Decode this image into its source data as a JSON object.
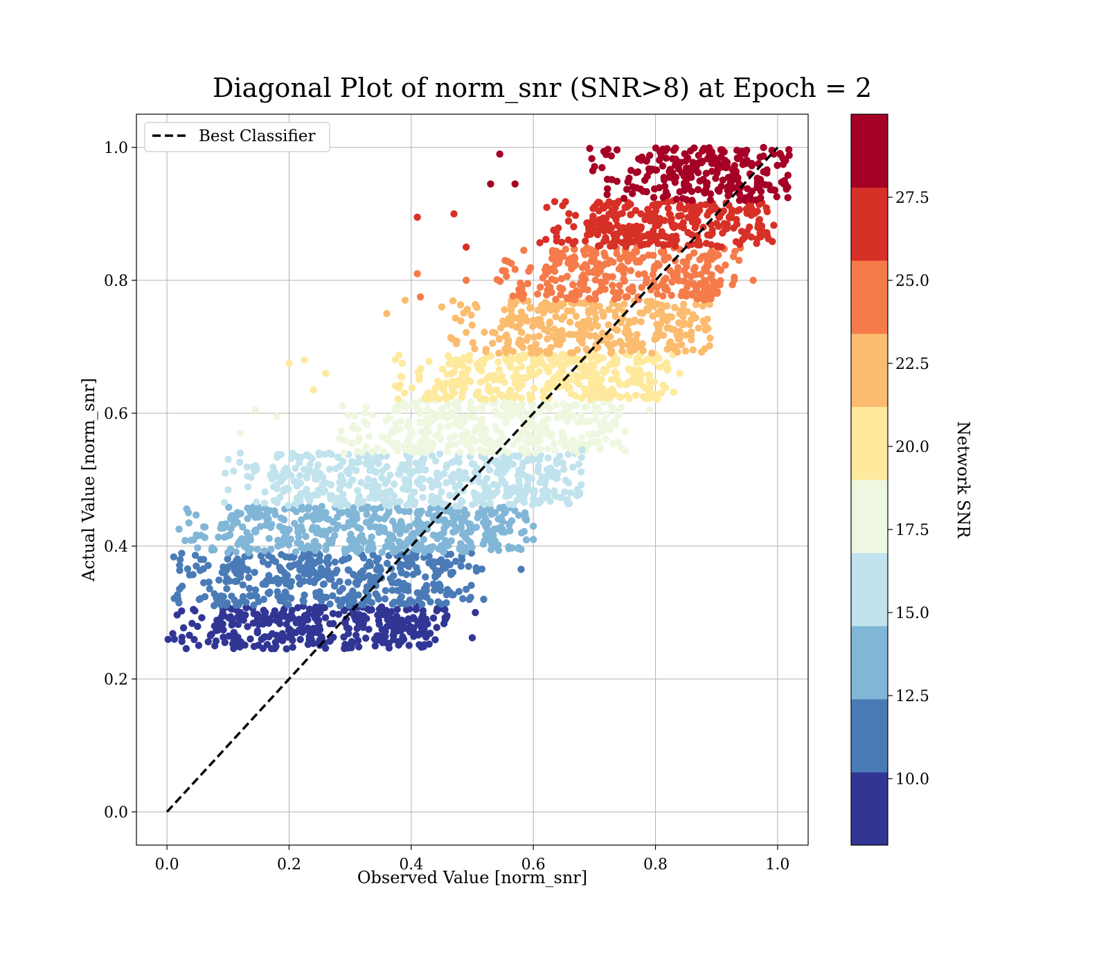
{
  "chart_data": {
    "type": "scatter",
    "title": "Diagonal Plot of norm_snr (SNR>8) at Epoch = 2",
    "xlabel": "Observed Value [norm_snr]",
    "ylabel": "Actual Value [norm_snr]",
    "xlim": [
      -0.05,
      1.05
    ],
    "ylim": [
      -0.05,
      1.05
    ],
    "xticks": [
      "0.0",
      "0.2",
      "0.4",
      "0.6",
      "0.8",
      "1.0"
    ],
    "yticks": [
      "0.0",
      "0.2",
      "0.4",
      "0.6",
      "0.8",
      "1.0"
    ],
    "grid": true,
    "legend": {
      "placement": "upper-left",
      "entries": [
        "Best Classifier"
      ]
    },
    "reference_line": {
      "name": "Best Classifier",
      "style": "dashed",
      "color": "#000000",
      "x": [
        0,
        1
      ],
      "y": [
        0,
        1
      ]
    },
    "colorbar": {
      "label": "Network SNR",
      "range": [
        8,
        30
      ],
      "ticks": [
        "10.0",
        "12.5",
        "15.0",
        "17.5",
        "20.0",
        "22.5",
        "25.0",
        "27.5"
      ],
      "colors": [
        "#313695",
        "#4a7bb7",
        "#82b6d7",
        "#c1e3ed",
        "#eef7e0",
        "#fee99d",
        "#fbbc6f",
        "#f57b4a",
        "#d73027",
        "#a50026"
      ]
    },
    "bands": [
      {
        "snr_range": [
          8.0,
          10.2
        ],
        "y_range": [
          0.245,
          0.31
        ],
        "x_range": [
          0.06,
          0.42
        ],
        "color": "#313695"
      },
      {
        "snr_range": [
          10.2,
          12.4
        ],
        "y_range": [
          0.31,
          0.39
        ],
        "x_range": [
          0.07,
          0.48
        ],
        "color": "#4a7bb7"
      },
      {
        "snr_range": [
          12.4,
          14.6
        ],
        "y_range": [
          0.39,
          0.46
        ],
        "x_range": [
          0.07,
          0.55
        ],
        "color": "#82b6d7"
      },
      {
        "snr_range": [
          14.6,
          16.8
        ],
        "y_range": [
          0.46,
          0.54
        ],
        "x_range": [
          0.15,
          0.64
        ],
        "color": "#c1e3ed"
      },
      {
        "snr_range": [
          16.8,
          19.0
        ],
        "y_range": [
          0.54,
          0.62
        ],
        "x_range": [
          0.34,
          0.72
        ],
        "color": "#eef7e0"
      },
      {
        "snr_range": [
          19.0,
          21.2
        ],
        "y_range": [
          0.62,
          0.69
        ],
        "x_range": [
          0.43,
          0.79
        ],
        "color": "#fee99d"
      },
      {
        "snr_range": [
          21.2,
          23.4
        ],
        "y_range": [
          0.69,
          0.77
        ],
        "x_range": [
          0.52,
          0.85
        ],
        "color": "#fbbc6f"
      },
      {
        "snr_range": [
          23.4,
          25.6
        ],
        "y_range": [
          0.77,
          0.85
        ],
        "x_range": [
          0.6,
          0.9
        ],
        "color": "#f57b4a"
      },
      {
        "snr_range": [
          25.6,
          27.8
        ],
        "y_range": [
          0.85,
          0.92
        ],
        "x_range": [
          0.67,
          0.96
        ],
        "color": "#d73027"
      },
      {
        "snr_range": [
          27.8,
          30.0
        ],
        "y_range": [
          0.92,
          1.0
        ],
        "x_range": [
          0.74,
          0.98
        ],
        "color": "#a50026"
      }
    ],
    "outliers": [
      {
        "x": 0.41,
        "y": 0.895,
        "band": 8
      },
      {
        "x": 0.53,
        "y": 0.945,
        "band": 9
      },
      {
        "x": 0.545,
        "y": 0.99,
        "band": 9
      },
      {
        "x": 0.57,
        "y": 0.945,
        "band": 9
      },
      {
        "x": 0.49,
        "y": 0.85,
        "band": 8
      },
      {
        "x": 0.47,
        "y": 0.9,
        "band": 8
      },
      {
        "x": 0.41,
        "y": 0.81,
        "band": 7
      },
      {
        "x": 0.415,
        "y": 0.775,
        "band": 7
      },
      {
        "x": 0.49,
        "y": 0.8,
        "band": 7
      },
      {
        "x": 0.96,
        "y": 0.8,
        "band": 7
      },
      {
        "x": 0.36,
        "y": 0.75,
        "band": 6
      },
      {
        "x": 0.39,
        "y": 0.77,
        "band": 6
      },
      {
        "x": 0.45,
        "y": 0.76,
        "band": 6
      },
      {
        "x": 0.2,
        "y": 0.675,
        "band": 5
      },
      {
        "x": 0.225,
        "y": 0.68,
        "band": 5
      },
      {
        "x": 0.24,
        "y": 0.635,
        "band": 5
      },
      {
        "x": 0.26,
        "y": 0.66,
        "band": 5
      },
      {
        "x": 0.84,
        "y": 0.66,
        "band": 5
      },
      {
        "x": 0.145,
        "y": 0.605,
        "band": 4
      },
      {
        "x": 0.18,
        "y": 0.595,
        "band": 4
      },
      {
        "x": 0.12,
        "y": 0.57,
        "band": 4
      },
      {
        "x": 0.79,
        "y": 0.605,
        "band": 4
      },
      {
        "x": 0.12,
        "y": 0.54,
        "band": 3
      },
      {
        "x": 0.68,
        "y": 0.545,
        "band": 3
      },
      {
        "x": 0.64,
        "y": 0.51,
        "band": 3
      },
      {
        "x": 0.58,
        "y": 0.395,
        "band": 2
      },
      {
        "x": 0.6,
        "y": 0.41,
        "band": 2
      },
      {
        "x": 0.6,
        "y": 0.43,
        "band": 2
      },
      {
        "x": 0.58,
        "y": 0.365,
        "band": 1
      },
      {
        "x": 0.49,
        "y": 0.335,
        "band": 1
      },
      {
        "x": 0.505,
        "y": 0.3,
        "band": 0
      },
      {
        "x": 0.5,
        "y": 0.262,
        "band": 0
      }
    ]
  }
}
